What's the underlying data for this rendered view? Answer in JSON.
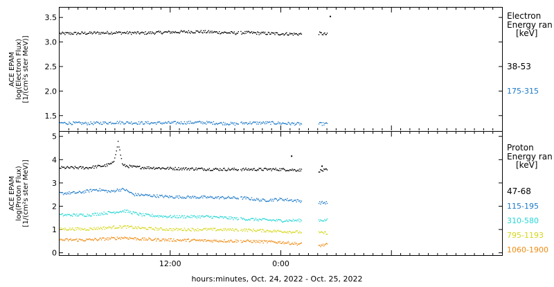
{
  "colors": {
    "axis": "#000000",
    "e_38_53": "#000000",
    "e_175_315": "#1a78c8",
    "p_47_68": "#000000",
    "p_115_195": "#1a78c8",
    "p_310_580": "#27d6d6",
    "p_795_1193": "#d6d61a",
    "p_1060_1900": "#f08a10"
  },
  "x_axis": {
    "label": "hours:minutes, Oct. 24, 2022 - Oct. 25, 2022",
    "range_hours": [
      0,
      48
    ],
    "ticks": [
      {
        "hour": 12,
        "label": "12:00"
      },
      {
        "hour": 24,
        "label": "0:00"
      }
    ],
    "data_gaps_hours": [
      [
        19.4,
        19.6
      ],
      [
        26.2,
        28.0
      ],
      [
        29.8,
        48
      ]
    ]
  },
  "chart_data": [
    {
      "type": "scatter",
      "panel": "electron",
      "ylabel": [
        "ACE EPAM",
        "log(Electron Flux)",
        "[1/(cm²s ster MeV)]"
      ],
      "ylim": [
        1.2,
        3.7
      ],
      "yticks": [
        1.5,
        2.0,
        2.5,
        3.0,
        3.5
      ],
      "ytick_labels": [
        "1.5",
        "2.0",
        "2.5",
        "3.0",
        "3.5"
      ],
      "legend_title": [
        "Electron",
        "Energy ran",
        "[keV]"
      ],
      "series": [
        {
          "name": "38-53",
          "color_key": "e_38_53",
          "x": [
            0,
            3,
            6,
            9,
            12,
            15,
            18,
            19,
            20,
            23,
            26,
            28,
            29
          ],
          "values": [
            3.17,
            3.18,
            3.19,
            3.18,
            3.2,
            3.21,
            3.19,
            3.18,
            3.19,
            3.17,
            3.16,
            3.18,
            3.15
          ]
        },
        {
          "name": "175-315",
          "color_key": "e_175_315",
          "x": [
            0,
            3,
            6,
            9,
            12,
            15,
            18,
            19,
            20,
            23,
            26,
            28,
            29
          ],
          "values": [
            1.35,
            1.34,
            1.36,
            1.35,
            1.35,
            1.36,
            1.34,
            1.33,
            1.35,
            1.35,
            1.33,
            1.33,
            1.33
          ]
        }
      ],
      "annotations": [
        {
          "x": 29.3,
          "y": 3.52
        }
      ]
    },
    {
      "type": "scatter",
      "panel": "proton",
      "ylabel": [
        "ACE EPAM",
        "log(Proton Flux)",
        "[1/(cm²s ster MeV)]"
      ],
      "ylim": [
        -0.1,
        5.2
      ],
      "yticks": [
        0,
        1,
        2,
        3,
        4,
        5
      ],
      "ytick_labels": [
        "0",
        "1",
        "2",
        "3",
        "4",
        "5"
      ],
      "legend_title": [
        "Proton",
        "Energy ran",
        "[keV]"
      ],
      "series": [
        {
          "name": "47-68",
          "color_key": "p_47_68",
          "x": [
            0,
            3,
            4,
            5,
            5.8,
            6.3,
            6.8,
            8,
            12,
            18,
            20,
            24,
            28,
            29
          ],
          "values": [
            3.65,
            3.65,
            3.7,
            3.75,
            3.85,
            4.75,
            3.75,
            3.68,
            3.62,
            3.58,
            3.58,
            3.58,
            3.52,
            3.55
          ]
        },
        {
          "name": "115-195",
          "color_key": "p_115_195",
          "x": [
            0,
            2,
            4,
            5.5,
            6.2,
            7,
            8,
            12,
            16,
            20,
            22,
            24,
            28,
            29
          ],
          "values": [
            2.55,
            2.58,
            2.72,
            2.62,
            2.7,
            2.72,
            2.5,
            2.4,
            2.38,
            2.35,
            2.25,
            2.3,
            2.15,
            2.15
          ]
        },
        {
          "name": "310-580",
          "color_key": "p_310_580",
          "x": [
            0,
            3,
            6,
            7,
            9,
            12,
            16,
            20,
            24,
            28,
            29
          ],
          "values": [
            1.62,
            1.62,
            1.75,
            1.8,
            1.62,
            1.55,
            1.55,
            1.45,
            1.38,
            1.4,
            1.4
          ]
        },
        {
          "name": "795-1193",
          "color_key": "p_795_1193",
          "x": [
            0,
            3,
            6,
            7,
            9,
            12,
            16,
            20,
            24,
            28,
            29
          ],
          "values": [
            1.02,
            1.02,
            1.1,
            1.12,
            1.05,
            1.0,
            1.0,
            0.98,
            0.92,
            0.85,
            0.85
          ]
        },
        {
          "name": "1060-1900",
          "color_key": "p_1060_1900",
          "x": [
            0,
            3,
            6,
            7,
            9,
            12,
            16,
            20,
            24,
            28,
            29
          ],
          "values": [
            0.55,
            0.55,
            0.62,
            0.65,
            0.58,
            0.55,
            0.52,
            0.5,
            0.45,
            0.3,
            0.35
          ]
        }
      ],
      "annotations": [
        {
          "x": 25.1,
          "y": 4.15
        },
        {
          "x": 28.4,
          "y": 3.72
        }
      ]
    }
  ]
}
